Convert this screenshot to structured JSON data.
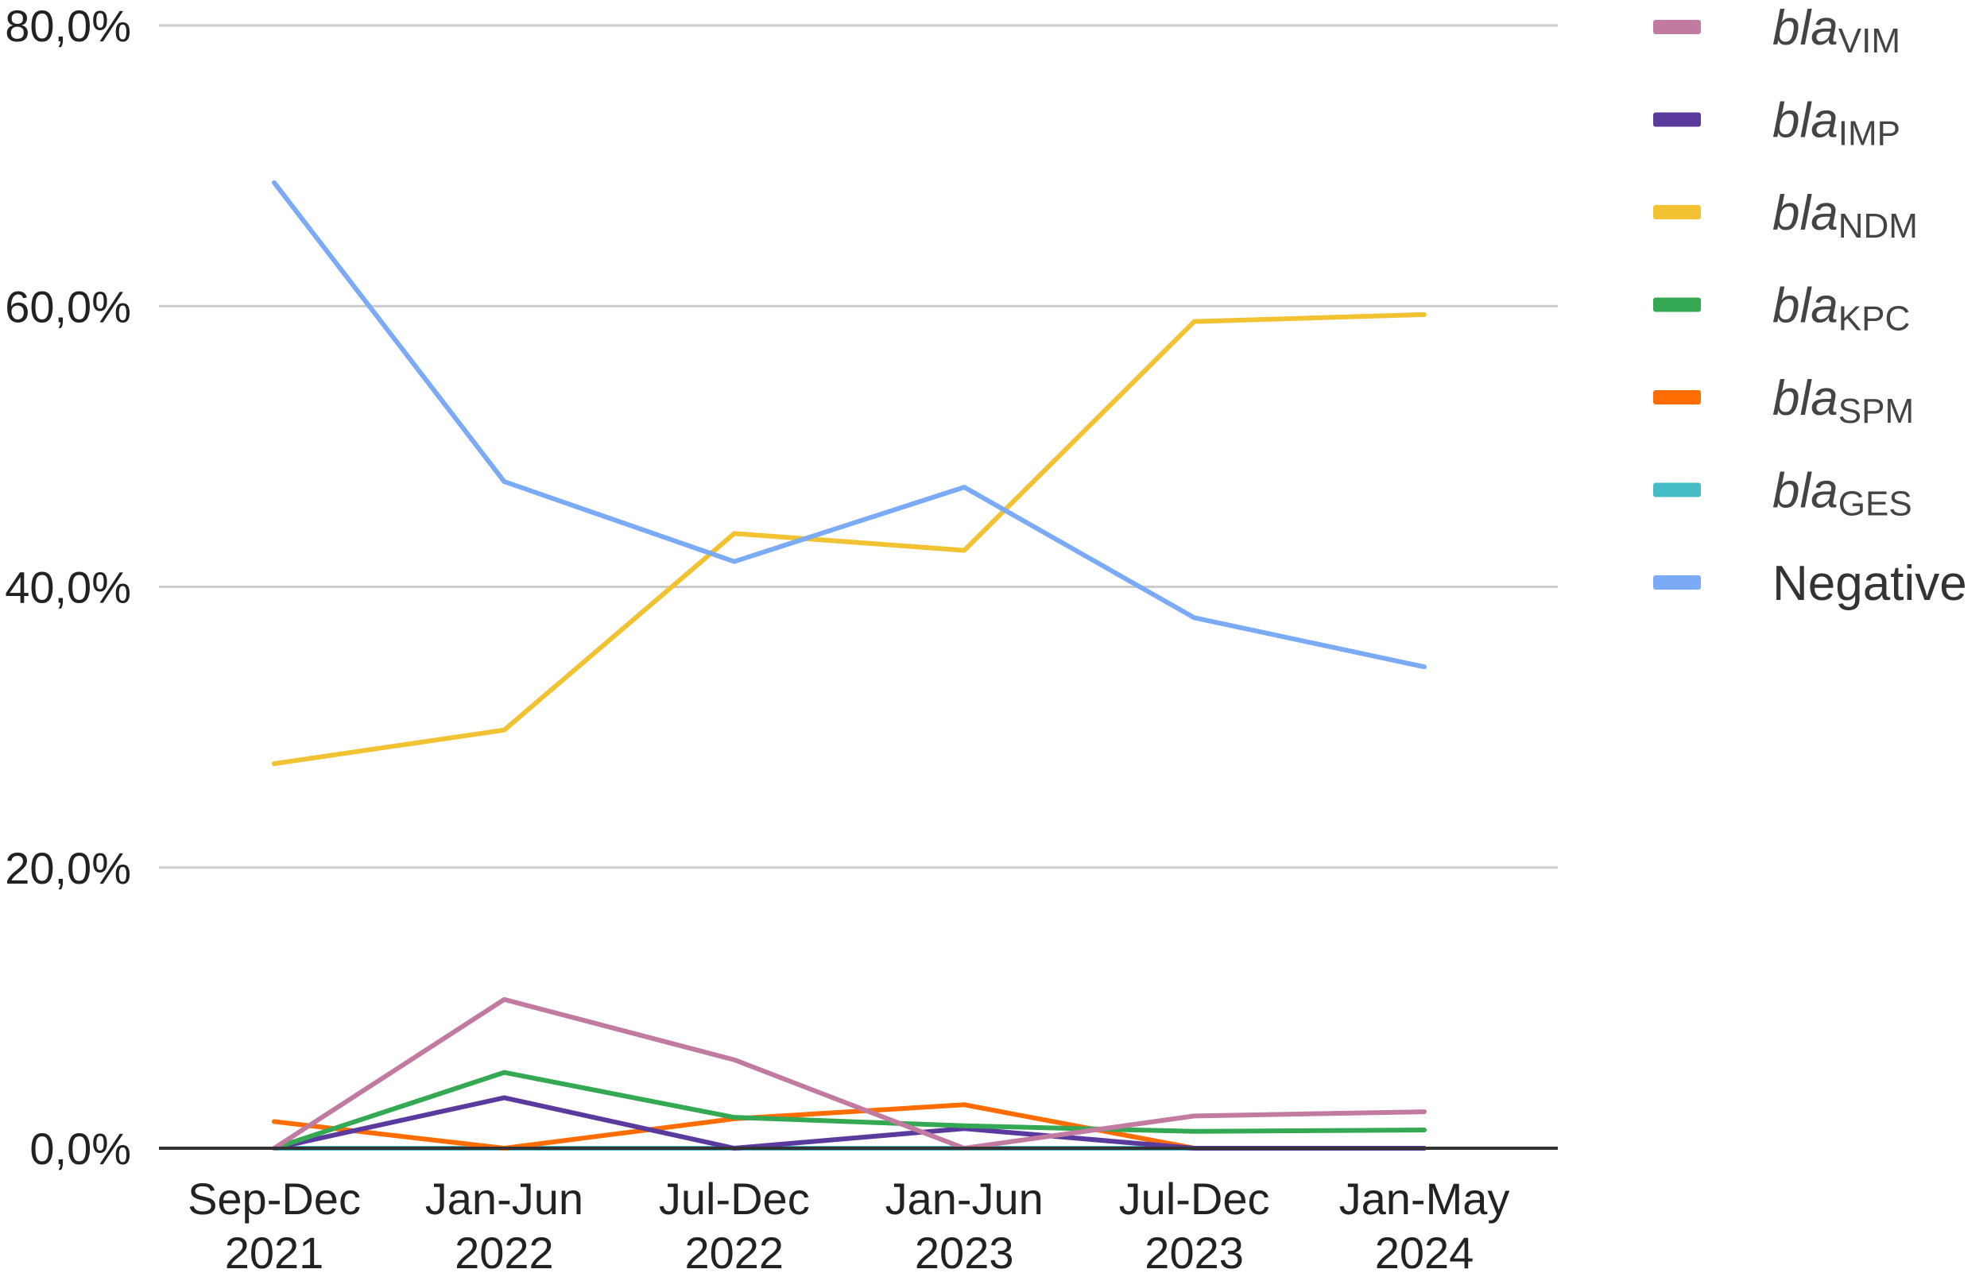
{
  "chart_data": {
    "type": "line",
    "categories": [
      [
        "Sep-Dec",
        "2021"
      ],
      [
        "Jan-Jun",
        "2022"
      ],
      [
        "Jul-Dec",
        "2022"
      ],
      [
        "Jan-Jun",
        "2023"
      ],
      [
        "Jul-Dec",
        "2023"
      ],
      [
        "Jan-May",
        "2024"
      ]
    ],
    "ylim": [
      0,
      80
    ],
    "yticks": [
      0,
      20,
      40,
      60,
      80
    ],
    "ytick_labels": [
      "0,0%",
      "20,0%",
      "40,0%",
      "60,0%",
      "80,0%"
    ],
    "grid": true,
    "legend_position": "right",
    "series": [
      {
        "prefix": "bla",
        "suffix": "VIM",
        "color": "#c27ba0",
        "values": [
          0,
          10.6,
          6.3,
          0,
          2.3,
          2.6
        ]
      },
      {
        "prefix": "bla",
        "suffix": "IMP",
        "color": "#5b3a9e",
        "values": [
          0,
          3.6,
          0,
          1.4,
          0,
          0
        ]
      },
      {
        "prefix": "bla",
        "suffix": "NDM",
        "color": "#f1c232",
        "values": [
          27.4,
          29.8,
          43.8,
          42.6,
          58.9,
          59.4
        ]
      },
      {
        "prefix": "bla",
        "suffix": "KPC",
        "color": "#34a853",
        "values": [
          0,
          5.4,
          2.2,
          1.6,
          1.2,
          1.3
        ]
      },
      {
        "prefix": "bla",
        "suffix": "SPM",
        "color": "#ff6d01",
        "values": [
          1.9,
          0,
          2.1,
          3.1,
          0,
          0
        ]
      },
      {
        "prefix": "bla",
        "suffix": "GES",
        "color": "#46bdc6",
        "values": [
          0,
          0,
          0,
          0,
          0,
          0
        ]
      },
      {
        "label": "Negative",
        "color": "#7baaf7",
        "values": [
          68.8,
          47.5,
          41.8,
          47.1,
          37.8,
          34.3
        ]
      }
    ]
  }
}
